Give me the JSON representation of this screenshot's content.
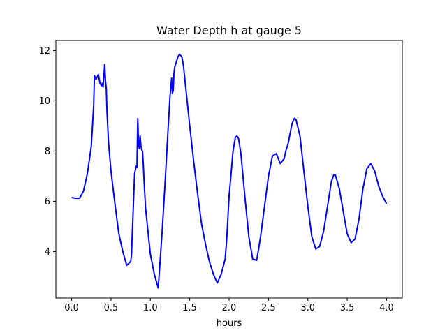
{
  "chart_data": {
    "type": "line",
    "title": "Water Depth h at gauge 5",
    "xlabel": "hours",
    "ylabel": "",
    "xlim": [
      -0.2,
      4.2
    ],
    "ylim": [
      2.15,
      12.4
    ],
    "xticks": [
      0.0,
      0.5,
      1.0,
      1.5,
      2.0,
      2.5,
      3.0,
      3.5,
      4.0
    ],
    "xtick_labels": [
      "0.0",
      "0.5",
      "1.0",
      "1.5",
      "2.0",
      "2.5",
      "3.0",
      "3.5",
      "4.0"
    ],
    "yticks": [
      4,
      6,
      8,
      10,
      12
    ],
    "ytick_labels": [
      "4",
      "6",
      "8",
      "10",
      "12"
    ],
    "grid": false,
    "line_color": "#0000ff",
    "series": [
      {
        "x": [
          0.0,
          0.05,
          0.1,
          0.15,
          0.2,
          0.25,
          0.28,
          0.29,
          0.31,
          0.34,
          0.36,
          0.37,
          0.38,
          0.39,
          0.4,
          0.42,
          0.43,
          0.44,
          0.45,
          0.47,
          0.5,
          0.55,
          0.6,
          0.65,
          0.7,
          0.75,
          0.76,
          0.8,
          0.82,
          0.83,
          0.84,
          0.85,
          0.86,
          0.87,
          0.88,
          0.89,
          0.9,
          0.91,
          0.92,
          0.94,
          0.97,
          1.0,
          1.05,
          1.1,
          1.15,
          1.19,
          1.22,
          1.25,
          1.27,
          1.28,
          1.29,
          1.3,
          1.31,
          1.33,
          1.35,
          1.37,
          1.4,
          1.42,
          1.45,
          1.5,
          1.55,
          1.6,
          1.65,
          1.7,
          1.75,
          1.8,
          1.85,
          1.9,
          1.95,
          1.97,
          2.0,
          2.05,
          2.08,
          2.1,
          2.12,
          2.15,
          2.2,
          2.25,
          2.3,
          2.35,
          2.38,
          2.4,
          2.45,
          2.5,
          2.55,
          2.6,
          2.65,
          2.7,
          2.72,
          2.75,
          2.8,
          2.83,
          2.85,
          2.9,
          2.95,
          3.0,
          3.05,
          3.1,
          3.15,
          3.2,
          3.25,
          3.3,
          3.33,
          3.35,
          3.4,
          3.45,
          3.5,
          3.55,
          3.6,
          3.65,
          3.7,
          3.75,
          3.8,
          3.85,
          3.9,
          3.95,
          4.0
        ],
        "y": [
          6.15,
          6.12,
          6.12,
          6.4,
          7.1,
          8.2,
          9.8,
          11.0,
          10.85,
          11.05,
          10.7,
          10.65,
          10.6,
          10.7,
          10.55,
          11.45,
          10.8,
          10.5,
          9.5,
          8.3,
          7.2,
          5.9,
          4.7,
          4.0,
          3.45,
          3.6,
          3.85,
          7.1,
          7.4,
          7.35,
          9.3,
          8.3,
          8.1,
          8.6,
          8.2,
          8.05,
          8.0,
          7.5,
          6.8,
          5.7,
          4.8,
          3.9,
          3.1,
          2.55,
          4.8,
          6.9,
          8.6,
          10.2,
          10.9,
          10.3,
          10.4,
          11.1,
          11.35,
          11.55,
          11.75,
          11.85,
          11.75,
          11.4,
          10.5,
          9.0,
          7.6,
          6.3,
          5.1,
          4.3,
          3.6,
          3.1,
          2.75,
          3.1,
          3.7,
          4.5,
          6.2,
          8.0,
          8.55,
          8.6,
          8.5,
          7.9,
          6.2,
          4.6,
          3.7,
          3.65,
          4.2,
          4.6,
          5.8,
          7.0,
          7.8,
          7.9,
          7.5,
          7.7,
          8.0,
          8.3,
          9.1,
          9.3,
          9.25,
          8.6,
          7.2,
          5.8,
          4.6,
          4.1,
          4.2,
          4.8,
          5.8,
          6.8,
          7.05,
          7.05,
          6.5,
          5.6,
          4.7,
          4.35,
          4.5,
          5.3,
          6.5,
          7.3,
          7.5,
          7.2,
          6.6,
          6.2,
          5.9
        ]
      }
    ]
  }
}
